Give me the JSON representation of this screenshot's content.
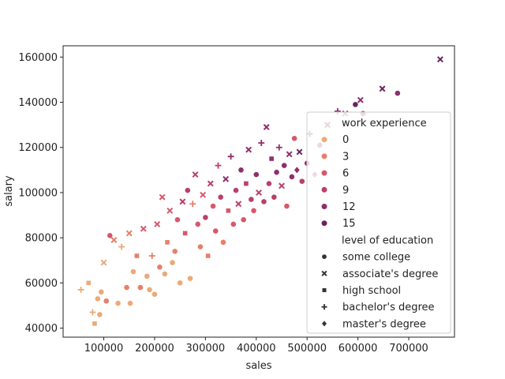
{
  "chart_data": {
    "type": "scatter",
    "title": "",
    "xlabel": "sales",
    "ylabel": "salary",
    "xlim": [
      20000,
      790000
    ],
    "ylim": [
      36000,
      165000
    ],
    "xticks": [
      100000,
      200000,
      300000,
      400000,
      500000,
      600000,
      700000
    ],
    "xtick_labels": [
      "100000",
      "200000",
      "300000",
      "400000",
      "500000",
      "600000",
      "700000"
    ],
    "yticks": [
      40000,
      60000,
      80000,
      100000,
      120000,
      140000,
      160000
    ],
    "ytick_labels": [
      "40000",
      "60000",
      "80000",
      "100000",
      "120000",
      "140000",
      "160000"
    ],
    "grid": false,
    "legend": {
      "placement": "lower-right",
      "hue_title": "work experience",
      "hue_entries": [
        {
          "label": "0",
          "color": "#ebaa78"
        },
        {
          "label": "3",
          "color": "#e5806a"
        },
        {
          "label": "6",
          "color": "#d9576b"
        },
        {
          "label": "9",
          "color": "#ba3f6b"
        },
        {
          "label": "12",
          "color": "#8e2f6d"
        },
        {
          "label": "15",
          "color": "#6a2360"
        }
      ],
      "style_title": "level of education",
      "style_entries": [
        {
          "label": "some college",
          "marker": "circle"
        },
        {
          "label": "associate's degree",
          "marker": "x"
        },
        {
          "label": "high school",
          "marker": "square"
        },
        {
          "label": "bachelor's degree",
          "marker": "plus"
        },
        {
          "label": "master's degree",
          "marker": "diamond"
        }
      ]
    },
    "points": [
      {
        "x": 55000,
        "y": 57000,
        "exp": 0,
        "edu": "bachelor's degree"
      },
      {
        "x": 70000,
        "y": 60000,
        "exp": 0,
        "edu": "high school"
      },
      {
        "x": 78000,
        "y": 47000,
        "exp": 0,
        "edu": "bachelor's degree"
      },
      {
        "x": 82000,
        "y": 42000,
        "exp": 0,
        "edu": "high school"
      },
      {
        "x": 88000,
        "y": 53000,
        "exp": 0,
        "edu": "some college"
      },
      {
        "x": 92000,
        "y": 46000,
        "exp": 0,
        "edu": "some college"
      },
      {
        "x": 95000,
        "y": 56000,
        "exp": 0,
        "edu": "some college"
      },
      {
        "x": 100000,
        "y": 69000,
        "exp": 0,
        "edu": "associate's degree"
      },
      {
        "x": 105000,
        "y": 52000,
        "exp": 3,
        "edu": "some college"
      },
      {
        "x": 112000,
        "y": 81000,
        "exp": 6,
        "edu": "some college"
      },
      {
        "x": 120000,
        "y": 79000,
        "exp": 3,
        "edu": "associate's degree"
      },
      {
        "x": 128000,
        "y": 51000,
        "exp": 0,
        "edu": "some college"
      },
      {
        "x": 135000,
        "y": 76000,
        "exp": 0,
        "edu": "bachelor's degree"
      },
      {
        "x": 145000,
        "y": 58000,
        "exp": 3,
        "edu": "some college"
      },
      {
        "x": 150000,
        "y": 82000,
        "exp": 3,
        "edu": "associate's degree"
      },
      {
        "x": 152000,
        "y": 51000,
        "exp": 0,
        "edu": "some college"
      },
      {
        "x": 158000,
        "y": 65000,
        "exp": 0,
        "edu": "some college"
      },
      {
        "x": 165000,
        "y": 72000,
        "exp": 3,
        "edu": "high school"
      },
      {
        "x": 172000,
        "y": 58000,
        "exp": 3,
        "edu": "some college"
      },
      {
        "x": 178000,
        "y": 84000,
        "exp": 6,
        "edu": "associate's degree"
      },
      {
        "x": 185000,
        "y": 63000,
        "exp": 0,
        "edu": "some college"
      },
      {
        "x": 190000,
        "y": 57000,
        "exp": 0,
        "edu": "some college"
      },
      {
        "x": 195000,
        "y": 72000,
        "exp": 3,
        "edu": "bachelor's degree"
      },
      {
        "x": 200000,
        "y": 55000,
        "exp": 0,
        "edu": "some college"
      },
      {
        "x": 205000,
        "y": 86000,
        "exp": 6,
        "edu": "associate's degree"
      },
      {
        "x": 210000,
        "y": 67000,
        "exp": 3,
        "edu": "some college"
      },
      {
        "x": 215000,
        "y": 98000,
        "exp": 6,
        "edu": "associate's degree"
      },
      {
        "x": 220000,
        "y": 64000,
        "exp": 0,
        "edu": "some college"
      },
      {
        "x": 225000,
        "y": 78000,
        "exp": 3,
        "edu": "high school"
      },
      {
        "x": 230000,
        "y": 92000,
        "exp": 6,
        "edu": "associate's degree"
      },
      {
        "x": 235000,
        "y": 69000,
        "exp": 0,
        "edu": "some college"
      },
      {
        "x": 240000,
        "y": 74000,
        "exp": 3,
        "edu": "some college"
      },
      {
        "x": 245000,
        "y": 88000,
        "exp": 6,
        "edu": "some college"
      },
      {
        "x": 250000,
        "y": 60000,
        "exp": 0,
        "edu": "some college"
      },
      {
        "x": 255000,
        "y": 96000,
        "exp": 9,
        "edu": "associate's degree"
      },
      {
        "x": 260000,
        "y": 82000,
        "exp": 6,
        "edu": "high school"
      },
      {
        "x": 265000,
        "y": 101000,
        "exp": 9,
        "edu": "some college"
      },
      {
        "x": 270000,
        "y": 62000,
        "exp": 0,
        "edu": "some college"
      },
      {
        "x": 275000,
        "y": 95000,
        "exp": 3,
        "edu": "bachelor's degree"
      },
      {
        "x": 280000,
        "y": 108000,
        "exp": 9,
        "edu": "associate's degree"
      },
      {
        "x": 285000,
        "y": 86000,
        "exp": 6,
        "edu": "some college"
      },
      {
        "x": 290000,
        "y": 76000,
        "exp": 3,
        "edu": "some college"
      },
      {
        "x": 295000,
        "y": 99000,
        "exp": 6,
        "edu": "associate's degree"
      },
      {
        "x": 300000,
        "y": 89000,
        "exp": 9,
        "edu": "some college"
      },
      {
        "x": 305000,
        "y": 72000,
        "exp": 3,
        "edu": "high school"
      },
      {
        "x": 310000,
        "y": 104000,
        "exp": 9,
        "edu": "associate's degree"
      },
      {
        "x": 315000,
        "y": 94000,
        "exp": 6,
        "edu": "some college"
      },
      {
        "x": 320000,
        "y": 83000,
        "exp": 6,
        "edu": "some college"
      },
      {
        "x": 325000,
        "y": 112000,
        "exp": 9,
        "edu": "bachelor's degree"
      },
      {
        "x": 330000,
        "y": 98000,
        "exp": 9,
        "edu": "some college"
      },
      {
        "x": 335000,
        "y": 78000,
        "exp": 3,
        "edu": "some college"
      },
      {
        "x": 340000,
        "y": 106000,
        "exp": 12,
        "edu": "associate's degree"
      },
      {
        "x": 345000,
        "y": 92000,
        "exp": 6,
        "edu": "high school"
      },
      {
        "x": 350000,
        "y": 116000,
        "exp": 12,
        "edu": "bachelor's degree"
      },
      {
        "x": 355000,
        "y": 86000,
        "exp": 6,
        "edu": "some college"
      },
      {
        "x": 360000,
        "y": 101000,
        "exp": 9,
        "edu": "some college"
      },
      {
        "x": 365000,
        "y": 95000,
        "exp": 9,
        "edu": "associate's degree"
      },
      {
        "x": 370000,
        "y": 110000,
        "exp": 12,
        "edu": "some college"
      },
      {
        "x": 375000,
        "y": 88000,
        "exp": 6,
        "edu": "some college"
      },
      {
        "x": 380000,
        "y": 104000,
        "exp": 9,
        "edu": "high school"
      },
      {
        "x": 385000,
        "y": 119000,
        "exp": 12,
        "edu": "associate's degree"
      },
      {
        "x": 390000,
        "y": 97000,
        "exp": 9,
        "edu": "some college"
      },
      {
        "x": 395000,
        "y": 92000,
        "exp": 6,
        "edu": "some college"
      },
      {
        "x": 400000,
        "y": 108000,
        "exp": 12,
        "edu": "some college"
      },
      {
        "x": 405000,
        "y": 100000,
        "exp": 9,
        "edu": "associate's degree"
      },
      {
        "x": 410000,
        "y": 122000,
        "exp": 12,
        "edu": "bachelor's degree"
      },
      {
        "x": 415000,
        "y": 96000,
        "exp": 9,
        "edu": "some college"
      },
      {
        "x": 420000,
        "y": 129000,
        "exp": 12,
        "edu": "associate's degree"
      },
      {
        "x": 425000,
        "y": 104000,
        "exp": 9,
        "edu": "some college"
      },
      {
        "x": 430000,
        "y": 115000,
        "exp": 12,
        "edu": "high school"
      },
      {
        "x": 435000,
        "y": 98000,
        "exp": 9,
        "edu": "some college"
      },
      {
        "x": 440000,
        "y": 109000,
        "exp": 12,
        "edu": "some college"
      },
      {
        "x": 445000,
        "y": 120000,
        "exp": 12,
        "edu": "bachelor's degree"
      },
      {
        "x": 450000,
        "y": 103000,
        "exp": 9,
        "edu": "associate's degree"
      },
      {
        "x": 455000,
        "y": 112000,
        "exp": 12,
        "edu": "some college"
      },
      {
        "x": 460000,
        "y": 94000,
        "exp": 6,
        "edu": "some college"
      },
      {
        "x": 465000,
        "y": 117000,
        "exp": 12,
        "edu": "associate's degree"
      },
      {
        "x": 470000,
        "y": 107000,
        "exp": 12,
        "edu": "some college"
      },
      {
        "x": 475000,
        "y": 124000,
        "exp": 6,
        "edu": "some college"
      },
      {
        "x": 480000,
        "y": 110000,
        "exp": 12,
        "edu": "master's degree"
      },
      {
        "x": 485000,
        "y": 118000,
        "exp": 15,
        "edu": "associate's degree"
      },
      {
        "x": 490000,
        "y": 105000,
        "exp": 9,
        "edu": "some college"
      },
      {
        "x": 500000,
        "y": 113000,
        "exp": 12,
        "edu": "some college"
      },
      {
        "x": 505000,
        "y": 126000,
        "exp": 15,
        "edu": "bachelor's degree"
      },
      {
        "x": 515000,
        "y": 108000,
        "exp": 12,
        "edu": "master's degree"
      },
      {
        "x": 525000,
        "y": 121000,
        "exp": 12,
        "edu": "some college"
      },
      {
        "x": 540000,
        "y": 130000,
        "exp": 15,
        "edu": "associate's degree"
      },
      {
        "x": 560000,
        "y": 136000,
        "exp": 12,
        "edu": "bachelor's degree"
      },
      {
        "x": 575000,
        "y": 135000,
        "exp": 12,
        "edu": "associate's degree"
      },
      {
        "x": 595000,
        "y": 139000,
        "exp": 15,
        "edu": "some college"
      },
      {
        "x": 605000,
        "y": 141000,
        "exp": 12,
        "edu": "associate's degree"
      },
      {
        "x": 610000,
        "y": 135000,
        "exp": 12,
        "edu": "some college"
      },
      {
        "x": 648000,
        "y": 146000,
        "exp": 15,
        "edu": "associate's degree"
      },
      {
        "x": 678000,
        "y": 144000,
        "exp": 12,
        "edu": "some college"
      },
      {
        "x": 762000,
        "y": 159000,
        "exp": 15,
        "edu": "associate's degree"
      }
    ]
  }
}
